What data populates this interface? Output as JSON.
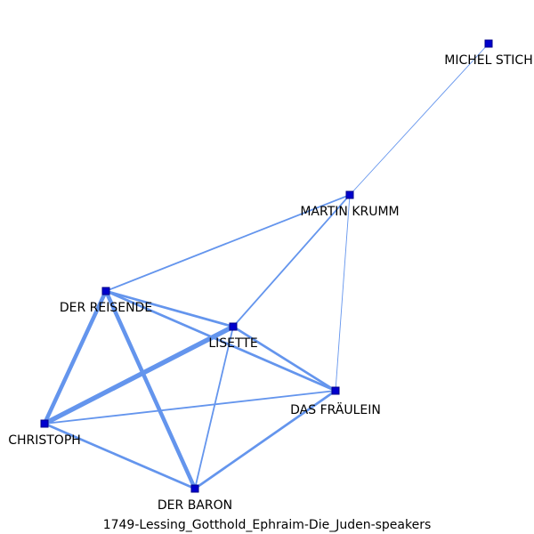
{
  "caption": "1749-Lessing_Gotthold_Ephraim-Die_Juden-speakers",
  "colors": {
    "edge": "#6495ED",
    "node_fill": "#0000CD",
    "node_stroke": "#00008B"
  },
  "nodes": [
    {
      "id": "michel",
      "label": "MICHEL STICH"
    },
    {
      "id": "martin",
      "label": "MARTIN KRUMM"
    },
    {
      "id": "reisende",
      "label": "DER REISENDE"
    },
    {
      "id": "lisette",
      "label": "LISETTE"
    },
    {
      "id": "fraulein",
      "label": "DAS FRÄULEIN"
    },
    {
      "id": "christoph",
      "label": "CHRISTOPH"
    },
    {
      "id": "baron",
      "label": "DER BARON"
    }
  ],
  "edges": [
    {
      "source": "michel",
      "target": "martin",
      "weight": 1
    },
    {
      "source": "martin",
      "target": "reisende",
      "weight": 2
    },
    {
      "source": "martin",
      "target": "lisette",
      "weight": 2
    },
    {
      "source": "martin",
      "target": "fraulein",
      "weight": 1
    },
    {
      "source": "reisende",
      "target": "lisette",
      "weight": 3
    },
    {
      "source": "reisende",
      "target": "fraulein",
      "weight": 3
    },
    {
      "source": "reisende",
      "target": "christoph",
      "weight": 5
    },
    {
      "source": "reisende",
      "target": "baron",
      "weight": 5
    },
    {
      "source": "lisette",
      "target": "christoph",
      "weight": 6
    },
    {
      "source": "lisette",
      "target": "fraulein",
      "weight": 3
    },
    {
      "source": "lisette",
      "target": "baron",
      "weight": 2
    },
    {
      "source": "christoph",
      "target": "fraulein",
      "weight": 2
    },
    {
      "source": "christoph",
      "target": "baron",
      "weight": 3
    },
    {
      "source": "fraulein",
      "target": "baron",
      "weight": 3
    }
  ]
}
